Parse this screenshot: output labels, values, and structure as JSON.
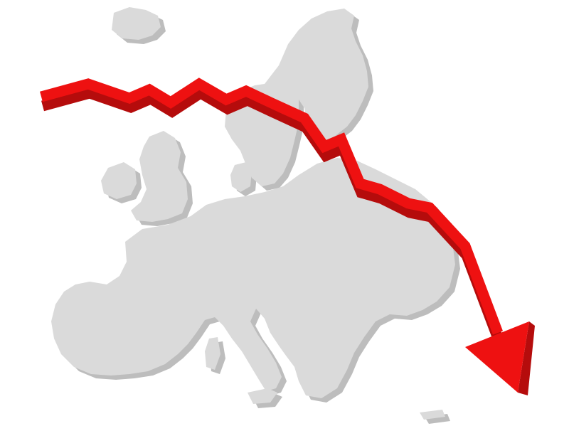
{
  "scene": {
    "background_color": "#ffffff",
    "map": {
      "region": "Europe",
      "fill_color": "#dadada",
      "shadow_color": "#bdbdbd"
    },
    "trend_arrow": {
      "direction": "down",
      "color": "#ee1111",
      "side_color": "#b50c0c"
    }
  }
}
